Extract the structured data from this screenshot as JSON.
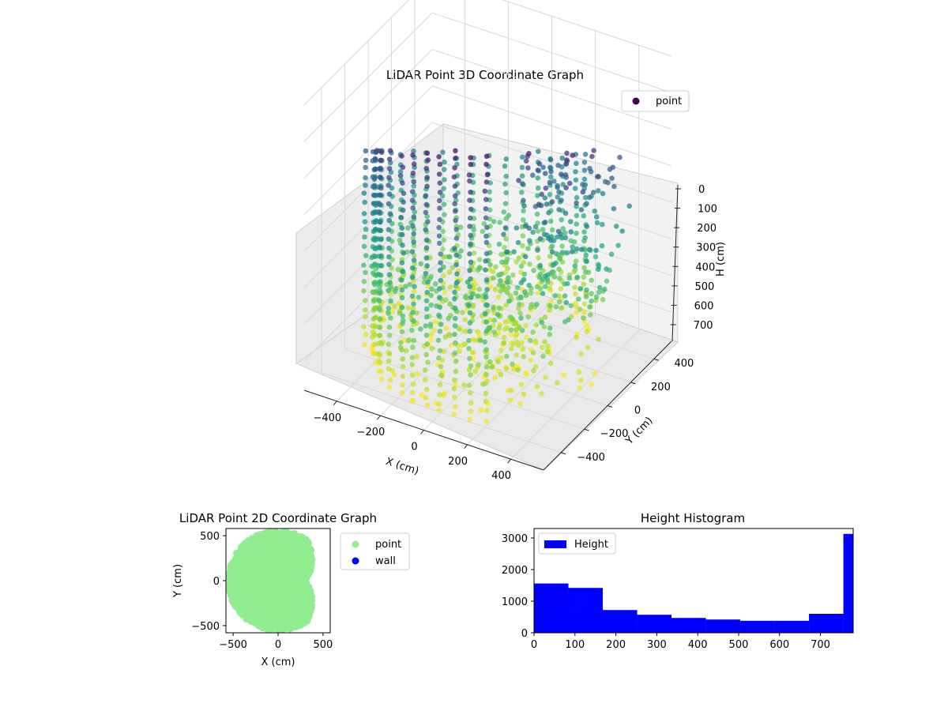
{
  "figure": {
    "width": 1200,
    "height": 900
  },
  "chart_data": [
    {
      "type": "scatter",
      "subtype": "3d",
      "title": "LiDAR Point 3D Coordinate Graph",
      "xlabel": "X (cm)",
      "ylabel": "Y (cm)",
      "zlabel": "H (cm)",
      "xlim": [
        -550,
        550
      ],
      "ylim": [
        -550,
        550
      ],
      "zlim": [
        0,
        780
      ],
      "z_inverted": true,
      "xticks": [
        -400,
        -200,
        0,
        200,
        400
      ],
      "xtick_labels": [
        "−400",
        "−200",
        "0",
        "200",
        "400"
      ],
      "yticks": [
        -400,
        -200,
        0,
        200,
        400
      ],
      "ytick_labels": [
        "−400",
        "−200",
        "0",
        "200",
        "400"
      ],
      "zticks": [
        0,
        100,
        200,
        300,
        400,
        500,
        600,
        700
      ],
      "ztick_labels": [
        "0",
        "100",
        "200",
        "300",
        "400",
        "500",
        "600",
        "700"
      ],
      "colormap": "viridis",
      "legend": {
        "entries": [
          "point"
        ],
        "placement": "top-right"
      },
      "grid": true,
      "series": [
        {
          "name": "point",
          "marker_color": "#440154",
          "description_shape": "cylindrical wall radius ~500, open towards +X, plus interior clutter"
        }
      ],
      "wall_radius": 500,
      "opening_angle_center_deg": 0,
      "opening_half_width_deg": 55
    },
    {
      "type": "scatter",
      "title": "LiDAR Point 2D Coordinate Graph",
      "xlabel": "X (cm)",
      "ylabel": "Y (cm)",
      "xlim": [
        -580,
        580
      ],
      "ylim": [
        -580,
        580
      ],
      "xticks": [
        -500,
        0,
        500
      ],
      "xtick_labels": [
        "−500",
        "0",
        "500"
      ],
      "yticks": [
        -500,
        0,
        500
      ],
      "ytick_labels": [
        "−500",
        "0",
        "500"
      ],
      "legend": {
        "entries": [
          "point",
          "wall"
        ],
        "placement": "outside-right"
      },
      "series": [
        {
          "name": "point",
          "color": "#90ee90"
        },
        {
          "name": "wall",
          "color": "#0000ff"
        }
      ]
    },
    {
      "type": "bar",
      "subtype": "histogram",
      "title": "Height Histogram",
      "xlim": [
        0,
        780
      ],
      "ylim": [
        0,
        3300
      ],
      "xticks": [
        0,
        100,
        200,
        300,
        400,
        500,
        600,
        700
      ],
      "xtick_labels": [
        "0",
        "100",
        "200",
        "300",
        "400",
        "500",
        "600",
        "700"
      ],
      "yticks": [
        0,
        1000,
        2000,
        3000
      ],
      "ytick_labels": [
        "0",
        "1000",
        "2000",
        "3000"
      ],
      "bin_edges": [
        0,
        84,
        168,
        252,
        336,
        420,
        504,
        588,
        672,
        756,
        780
      ],
      "values": [
        1560,
        1420,
        720,
        570,
        470,
        420,
        380,
        380,
        600,
        3130
      ],
      "series": [
        {
          "name": "Height",
          "color": "#0000ff"
        }
      ],
      "legend": {
        "entries": [
          "Height"
        ],
        "placement": "top-left"
      }
    }
  ]
}
